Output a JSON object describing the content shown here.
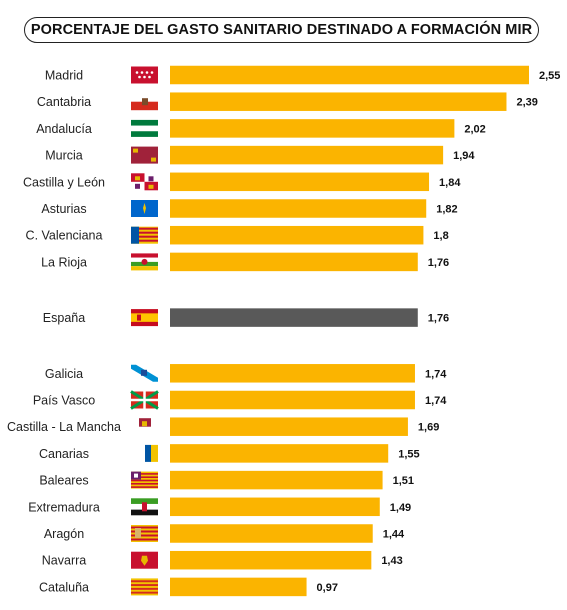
{
  "title": "PORCENTAJE DEL GASTO SANITARIO DESTINADO A FORMACIÓN MIR",
  "colors": {
    "bar": "#fbb400",
    "highlight_bar": "#595959"
  },
  "chart_data": {
    "type": "bar",
    "orientation": "horizontal",
    "title": "PORCENTAJE DEL GASTO SANITARIO DESTINADO A FORMACIÓN MIR",
    "xlim": [
      0,
      2.55
    ],
    "grid": false,
    "categories": [
      {
        "label": "Madrid",
        "value": 2.55,
        "value_label": "2,55",
        "flag": "madrid-flag-icon",
        "group": 0
      },
      {
        "label": "Cantabria",
        "value": 2.39,
        "value_label": "2,39",
        "flag": "cantabria-flag-icon",
        "group": 0
      },
      {
        "label": "Andalucía",
        "value": 2.02,
        "value_label": "2,02",
        "flag": "andalucia-flag-icon",
        "group": 0
      },
      {
        "label": "Murcia",
        "value": 1.94,
        "value_label": "1,94",
        "flag": "murcia-flag-icon",
        "group": 0
      },
      {
        "label": "Castilla y León",
        "value": 1.84,
        "value_label": "1,84",
        "flag": "castilla-leon-flag-icon",
        "group": 0
      },
      {
        "label": "Asturias",
        "value": 1.82,
        "value_label": "1,82",
        "flag": "asturias-flag-icon",
        "group": 0
      },
      {
        "label": "C. Valenciana",
        "value": 1.8,
        "value_label": "1,8",
        "flag": "valencia-flag-icon",
        "group": 0
      },
      {
        "label": "La Rioja",
        "value": 1.76,
        "value_label": "1,76",
        "flag": "rioja-flag-icon",
        "group": 0
      },
      {
        "label": "España",
        "value": 1.76,
        "value_label": "1,76",
        "flag": "spain-flag-icon",
        "group": 1,
        "highlight": true
      },
      {
        "label": "Galicia",
        "value": 1.74,
        "value_label": "1,74",
        "flag": "galicia-flag-icon",
        "group": 2
      },
      {
        "label": "País Vasco",
        "value": 1.74,
        "value_label": "1,74",
        "flag": "basque-flag-icon",
        "group": 2
      },
      {
        "label": "Castilla - La Mancha",
        "value": 1.69,
        "value_label": "1,69",
        "flag": "castilla-mancha-flag-icon",
        "group": 2
      },
      {
        "label": "Canarias",
        "value": 1.55,
        "value_label": "1,55",
        "flag": "canarias-flag-icon",
        "group": 2
      },
      {
        "label": "Baleares",
        "value": 1.51,
        "value_label": "1,51",
        "flag": "baleares-flag-icon",
        "group": 2
      },
      {
        "label": "Extremadura",
        "value": 1.49,
        "value_label": "1,49",
        "flag": "extremadura-flag-icon",
        "group": 2
      },
      {
        "label": "Aragón",
        "value": 1.44,
        "value_label": "1,44",
        "flag": "aragon-flag-icon",
        "group": 2
      },
      {
        "label": "Navarra",
        "value": 1.43,
        "value_label": "1,43",
        "flag": "navarra-flag-icon",
        "group": 2
      },
      {
        "label": "Cataluña",
        "value": 0.97,
        "value_label": "0,97",
        "flag": "catalonia-flag-icon",
        "group": 2
      }
    ]
  }
}
